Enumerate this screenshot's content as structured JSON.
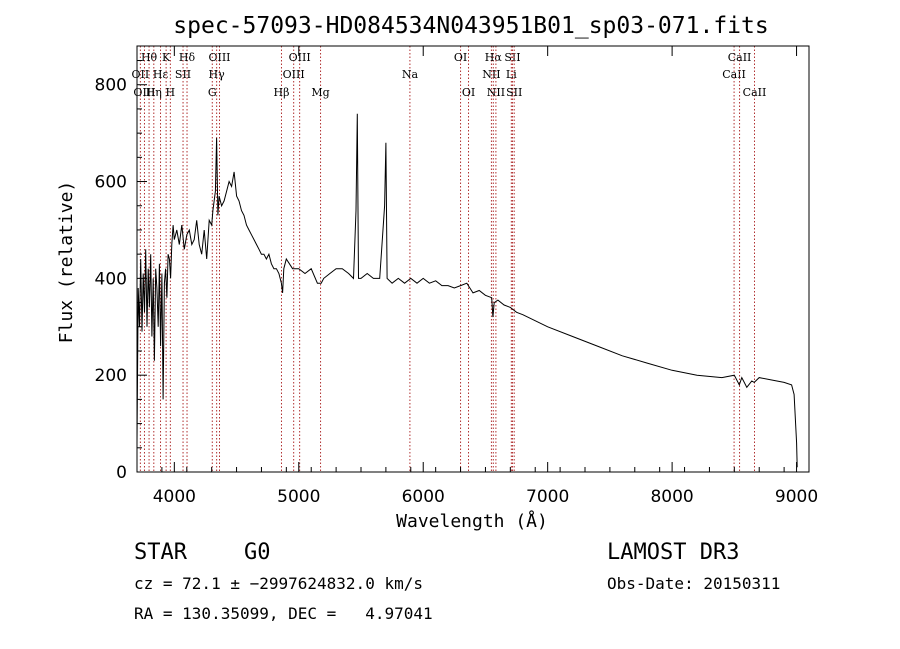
{
  "chart_data": {
    "type": "line",
    "title": "spec-57093-HD084534N043951B01_sp03-071.fits",
    "xlabel": "Wavelength (Å)",
    "ylabel": "Flux (relative)",
    "xlim": [
      3700,
      9100
    ],
    "ylim": [
      0,
      880
    ],
    "xticks": [
      4000,
      5000,
      6000,
      7000,
      8000,
      9000
    ],
    "yticks": [
      0,
      200,
      400,
      600,
      800
    ],
    "series": [
      {
        "name": "spectrum",
        "x": [
          3700,
          3710,
          3720,
          3730,
          3740,
          3750,
          3760,
          3770,
          3780,
          3790,
          3800,
          3810,
          3820,
          3830,
          3840,
          3850,
          3860,
          3870,
          3880,
          3890,
          3900,
          3910,
          3920,
          3930,
          3940,
          3950,
          3960,
          3970,
          3980,
          3990,
          4000,
          4020,
          4040,
          4060,
          4080,
          4100,
          4120,
          4140,
          4160,
          4180,
          4200,
          4220,
          4240,
          4260,
          4280,
          4300,
          4310,
          4330,
          4340,
          4350,
          4360,
          4380,
          4400,
          4420,
          4440,
          4460,
          4480,
          4500,
          4520,
          4540,
          4560,
          4580,
          4600,
          4620,
          4640,
          4660,
          4680,
          4700,
          4720,
          4740,
          4760,
          4780,
          4800,
          4820,
          4840,
          4860,
          4870,
          4880,
          4900,
          4950,
          5000,
          5050,
          5100,
          5150,
          5180,
          5200,
          5250,
          5300,
          5350,
          5400,
          5440,
          5460,
          5470,
          5480,
          5500,
          5550,
          5600,
          5650,
          5690,
          5700,
          5710,
          5750,
          5800,
          5850,
          5900,
          5950,
          6000,
          6050,
          6100,
          6150,
          6200,
          6250,
          6300,
          6350,
          6400,
          6450,
          6500,
          6550,
          6560,
          6570,
          6600,
          6650,
          6700,
          6750,
          6800,
          7000,
          7200,
          7400,
          7600,
          7800,
          8000,
          8200,
          8400,
          8500,
          8540,
          8560,
          8600,
          8640,
          8660,
          8700,
          8800,
          8900,
          8960,
          8980,
          9000,
          9005
        ],
        "values": [
          60,
          380,
          300,
          440,
          290,
          410,
          330,
          460,
          300,
          420,
          340,
          450,
          280,
          400,
          230,
          420,
          380,
          300,
          430,
          260,
          410,
          150,
          390,
          420,
          360,
          450,
          440,
          400,
          470,
          510,
          480,
          500,
          470,
          510,
          460,
          490,
          500,
          470,
          480,
          520,
          470,
          450,
          500,
          440,
          520,
          510,
          540,
          580,
          690,
          530,
          570,
          550,
          560,
          580,
          600,
          590,
          620,
          570,
          560,
          540,
          530,
          510,
          500,
          490,
          480,
          470,
          460,
          450,
          450,
          440,
          450,
          430,
          420,
          420,
          410,
          390,
          370,
          420,
          440,
          420,
          420,
          410,
          420,
          390,
          390,
          400,
          410,
          420,
          420,
          410,
          400,
          540,
          740,
          400,
          400,
          410,
          400,
          400,
          550,
          680,
          400,
          390,
          400,
          390,
          400,
          390,
          400,
          390,
          395,
          385,
          385,
          380,
          385,
          390,
          370,
          375,
          365,
          360,
          320,
          350,
          355,
          345,
          340,
          330,
          325,
          300,
          280,
          260,
          240,
          225,
          210,
          200,
          195,
          200,
          180,
          195,
          175,
          188,
          185,
          195,
          190,
          185,
          180,
          160,
          60,
          10
        ]
      }
    ],
    "line_markers": [
      {
        "label": "Hθ",
        "wl": 3797,
        "row": 1
      },
      {
        "label": "OII",
        "wl": 3727,
        "row": 2
      },
      {
        "label": "OIII",
        "wl": 3760,
        "row": 3
      },
      {
        "label": "Hε",
        "wl": 3889,
        "row": 2
      },
      {
        "label": "Hη",
        "wl": 3835,
        "row": 3
      },
      {
        "label": "K",
        "wl": 3934,
        "row": 1
      },
      {
        "label": "H",
        "wl": 3968,
        "row": 3
      },
      {
        "label": "SII",
        "wl": 4070,
        "row": 2
      },
      {
        "label": "Hδ",
        "wl": 4102,
        "row": 1
      },
      {
        "label": "G",
        "wl": 4305,
        "row": 3
      },
      {
        "label": "OIII",
        "wl": 4363,
        "row": 1
      },
      {
        "label": "Hγ",
        "wl": 4340,
        "row": 2
      },
      {
        "label": "Hβ",
        "wl": 4861,
        "row": 3
      },
      {
        "label": "OIII",
        "wl": 4959,
        "row": 2
      },
      {
        "label": "OIII",
        "wl": 5007,
        "row": 1
      },
      {
        "label": "Mg",
        "wl": 5175,
        "row": 3
      },
      {
        "label": "Na",
        "wl": 5893,
        "row": 2
      },
      {
        "label": "OI",
        "wl": 6300,
        "row": 1
      },
      {
        "label": "OI",
        "wl": 6364,
        "row": 3
      },
      {
        "label": "NII",
        "wl": 6548,
        "row": 2
      },
      {
        "label": "Hα",
        "wl": 6563,
        "row": 1
      },
      {
        "label": "NII",
        "wl": 6584,
        "row": 3
      },
      {
        "label": "SII",
        "wl": 6717,
        "row": 1
      },
      {
        "label": "Li",
        "wl": 6708,
        "row": 2
      },
      {
        "label": "SII",
        "wl": 6731,
        "row": 3
      },
      {
        "label": "CaII",
        "wl": 8498,
        "row": 2
      },
      {
        "label": "CaII",
        "wl": 8542,
        "row": 1
      },
      {
        "label": "CaII",
        "wl": 8662,
        "row": 3
      }
    ]
  },
  "info": {
    "object_class": "STAR",
    "subclass": "G0",
    "survey": "LAMOST DR3",
    "redshift_line": "cz = 72.1 ± −2997624832.0 km/s",
    "obs_date_line": "Obs-Date: 20150311",
    "coord_line": "RA = 130.35099, DEC =   4.97041"
  },
  "colors": {
    "marker_line": "#b03030",
    "spectrum": "#000000",
    "axis": "#000000"
  }
}
